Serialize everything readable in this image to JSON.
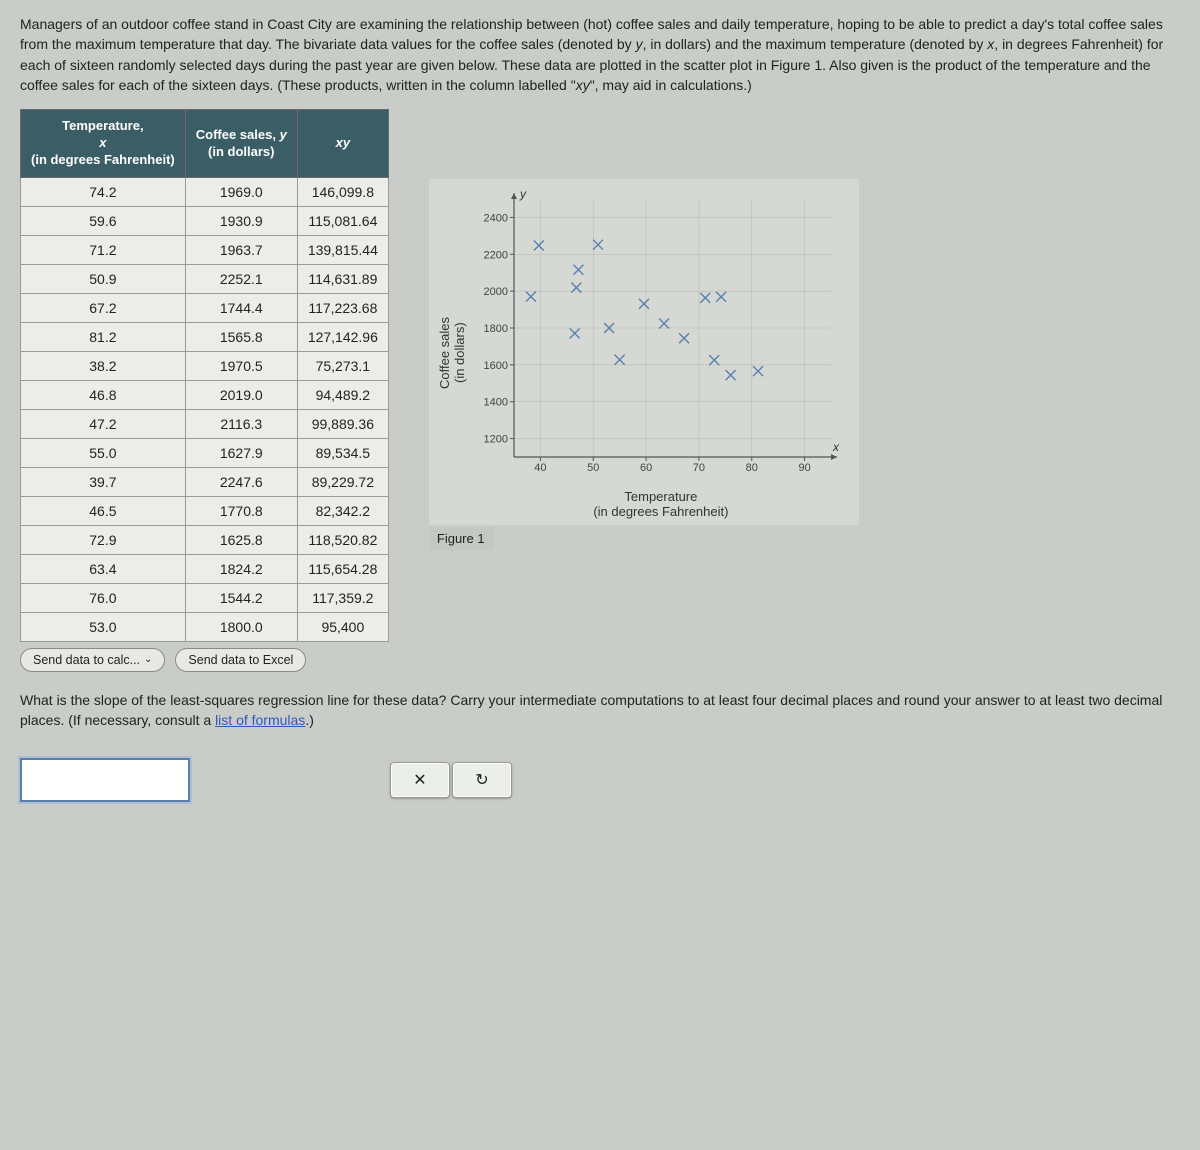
{
  "problem": {
    "p1": "Managers of an outdoor coffee stand in Coast City are examining the relationship between (hot) coffee sales and daily temperature, hoping to be able to predict a day's total coffee sales from the maximum temperature that day. The bivariate data values for the coffee sales (denoted by ",
    "yvar": "y",
    "p2": ", in dollars) and the maximum temperature (denoted by ",
    "xvar": "x",
    "p3": ", in degrees Fahrenheit) for each of sixteen randomly selected days during the past year are given below. These data are plotted in the scatter plot in Figure 1. Also given is the product of the temperature and the coffee sales for each of the sixteen days. (These products, written in the column labelled \"",
    "xyvar": "xy",
    "p4": "\", may aid in calculations.)"
  },
  "table": {
    "headers": {
      "h1a": "Temperature,",
      "h1b": "x",
      "h1c": "(in degrees Fahrenheit)",
      "h2a": "Coffee sales,",
      "h2b": "y",
      "h2c": "(in dollars)",
      "h3": "xy"
    },
    "rows": [
      {
        "x": "74.2",
        "y": "1969.0",
        "xy": "146,099.8"
      },
      {
        "x": "59.6",
        "y": "1930.9",
        "xy": "115,081.64"
      },
      {
        "x": "71.2",
        "y": "1963.7",
        "xy": "139,815.44"
      },
      {
        "x": "50.9",
        "y": "2252.1",
        "xy": "114,631.89"
      },
      {
        "x": "67.2",
        "y": "1744.4",
        "xy": "117,223.68"
      },
      {
        "x": "81.2",
        "y": "1565.8",
        "xy": "127,142.96"
      },
      {
        "x": "38.2",
        "y": "1970.5",
        "xy": "75,273.1"
      },
      {
        "x": "46.8",
        "y": "2019.0",
        "xy": "94,489.2"
      },
      {
        "x": "47.2",
        "y": "2116.3",
        "xy": "99,889.36"
      },
      {
        "x": "55.0",
        "y": "1627.9",
        "xy": "89,534.5"
      },
      {
        "x": "39.7",
        "y": "2247.6",
        "xy": "89,229.72"
      },
      {
        "x": "46.5",
        "y": "1770.8",
        "xy": "82,342.2"
      },
      {
        "x": "72.9",
        "y": "1625.8",
        "xy": "118,520.82"
      },
      {
        "x": "63.4",
        "y": "1824.2",
        "xy": "115,654.28"
      },
      {
        "x": "76.0",
        "y": "1544.2",
        "xy": "117,359.2"
      },
      {
        "x": "53.0",
        "y": "1800.0",
        "xy": "95,400"
      }
    ]
  },
  "buttons": {
    "calc": "Send data to calc...",
    "excel": "Send data to Excel"
  },
  "chart": {
    "type": "scatter",
    "ylabel": "Coffee sales\n(in dollars)",
    "ylabel_l1": "Coffee sales",
    "ylabel_l2": "(in dollars)",
    "xlabel_l1": "Temperature",
    "xlabel_l2": "(in degrees Fahrenheit)",
    "caption": "Figure 1",
    "y_letter": "y",
    "x_letter": "x",
    "xlim": [
      35,
      95
    ],
    "ylim": [
      1100,
      2500
    ],
    "xticks": [
      40,
      50,
      60,
      70,
      80,
      90
    ],
    "yticks": [
      1200,
      1400,
      1600,
      1800,
      2000,
      2200,
      2400
    ],
    "grid_color": "#b9bcb7",
    "axis_color": "#555",
    "marker": "x",
    "marker_color": "#5a7fae",
    "marker_size": 5,
    "background": "#d6d8d4",
    "tick_fontsize": 11,
    "points": [
      {
        "x": 74.2,
        "y": 1969.0
      },
      {
        "x": 59.6,
        "y": 1930.9
      },
      {
        "x": 71.2,
        "y": 1963.7
      },
      {
        "x": 50.9,
        "y": 2252.1
      },
      {
        "x": 67.2,
        "y": 1744.4
      },
      {
        "x": 81.2,
        "y": 1565.8
      },
      {
        "x": 38.2,
        "y": 1970.5
      },
      {
        "x": 46.8,
        "y": 2019.0
      },
      {
        "x": 47.2,
        "y": 2116.3
      },
      {
        "x": 55.0,
        "y": 1627.9
      },
      {
        "x": 39.7,
        "y": 2247.6
      },
      {
        "x": 46.5,
        "y": 1770.8
      },
      {
        "x": 72.9,
        "y": 1625.8
      },
      {
        "x": 63.4,
        "y": 1824.2
      },
      {
        "x": 76.0,
        "y": 1544.2
      },
      {
        "x": 53.0,
        "y": 1800.0
      }
    ]
  },
  "question": {
    "q1": "What is the slope of the least-squares regression line for these data? Carry your intermediate computations to at least four decimal places and round your answer to at least two decimal places. (If necessary, consult a ",
    "link": "list of formulas",
    "q2": ".)"
  },
  "answer": {
    "placeholder": ""
  },
  "icons": {
    "clear": "✕",
    "reset": "↻",
    "chev": "⌄"
  }
}
